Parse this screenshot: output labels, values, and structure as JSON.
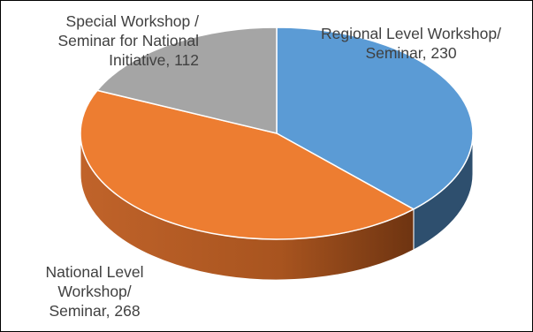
{
  "chart_data": {
    "type": "pie",
    "title": "",
    "style": "3d",
    "slices": [
      {
        "label": "Regional Level Workshop/\nSeminar",
        "value": 230,
        "color": "#5b9bd5",
        "side_color": "#2e4f6e"
      },
      {
        "label": "National Level\nWorkshop/\nSeminar",
        "value": 268,
        "color": "#ed7d31",
        "side_color": "#8a4318"
      },
      {
        "label": "Special Workshop /\nSeminar for National\nInitiative",
        "value": 112,
        "color": "#a5a5a5",
        "side_color": "#6e6e6e"
      }
    ],
    "data_labels": [
      "Regional Level Workshop/\nSeminar, 230",
      "National Level\nWorkshop/\nSeminar, 268",
      "Special Workshop /\nSeminar for National\nInitiative, 112"
    ],
    "legend": "none"
  }
}
